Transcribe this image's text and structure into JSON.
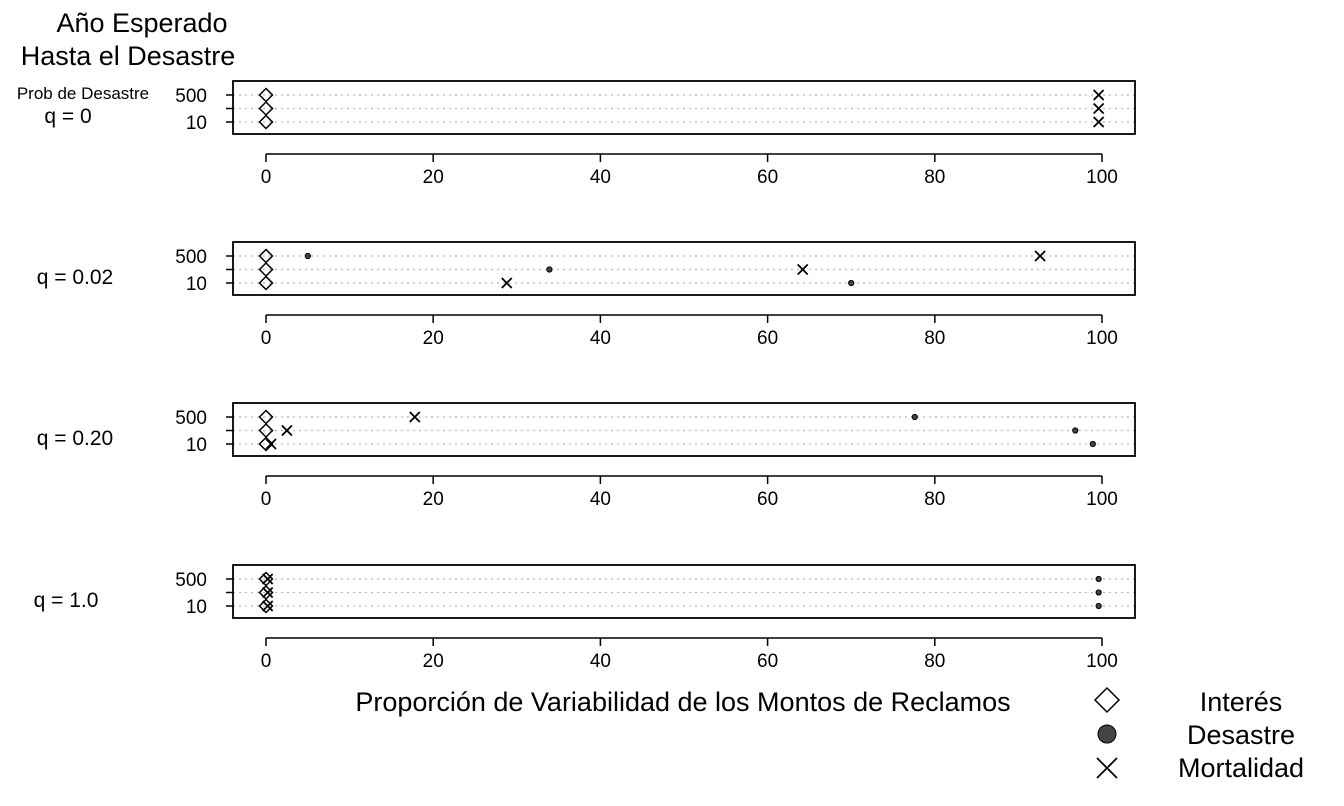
{
  "chart_data": {
    "type": "scatter",
    "heading": {
      "line1": "Año Esperado",
      "line2": "Hasta el Desastre"
    },
    "prob_label": "Prob de Desastre",
    "xlabel": "Proporción de Variabilidad de los Montos de Reclamos",
    "xlim": [
      0,
      100
    ],
    "x_ticks": [
      0,
      20,
      40,
      60,
      80,
      100
    ],
    "y_categories": [
      "10",
      "100",
      "500"
    ],
    "y_tick_labels": [
      "500",
      "10"
    ],
    "grid": "horizontal dotted",
    "legend": {
      "position": "bottom-right",
      "entries": [
        {
          "key": "interes",
          "label": "Interés",
          "symbol": "diamond"
        },
        {
          "key": "desastre",
          "label": "Desastre",
          "symbol": "dot"
        },
        {
          "key": "mortalidad",
          "label": "Mortalidad",
          "symbol": "x"
        }
      ]
    },
    "panels": [
      {
        "label": "q = 0",
        "series": {
          "interes": [
            {
              "x": 0,
              "y": "500"
            },
            {
              "x": 0,
              "y": "100"
            },
            {
              "x": 0,
              "y": "10"
            }
          ],
          "desastre": [],
          "mortalidad": [
            {
              "x": 99.6,
              "y": "500"
            },
            {
              "x": 99.6,
              "y": "100"
            },
            {
              "x": 99.6,
              "y": "10"
            }
          ]
        }
      },
      {
        "label": "q = 0.02",
        "series": {
          "interes": [
            {
              "x": 0,
              "y": "500"
            },
            {
              "x": 0,
              "y": "100"
            },
            {
              "x": 0,
              "y": "10"
            }
          ],
          "desastre": [
            {
              "x": 5,
              "y": "500"
            },
            {
              "x": 33.9,
              "y": "100"
            },
            {
              "x": 70,
              "y": "10"
            }
          ],
          "mortalidad": [
            {
              "x": 92.6,
              "y": "500"
            },
            {
              "x": 64.2,
              "y": "100"
            },
            {
              "x": 28.8,
              "y": "10"
            }
          ]
        }
      },
      {
        "label": "q = 0.20",
        "series": {
          "interes": [
            {
              "x": 0,
              "y": "500"
            },
            {
              "x": 0,
              "y": "100"
            },
            {
              "x": 0,
              "y": "10"
            }
          ],
          "desastre": [
            {
              "x": 77.6,
              "y": "500"
            },
            {
              "x": 96.8,
              "y": "100"
            },
            {
              "x": 98.9,
              "y": "10"
            }
          ],
          "mortalidad": [
            {
              "x": 17.8,
              "y": "500"
            },
            {
              "x": 2.5,
              "y": "100"
            },
            {
              "x": 0.6,
              "y": "10"
            }
          ]
        }
      },
      {
        "label": "q = 1.0",
        "series": {
          "interes": [
            {
              "x": 0,
              "y": "500"
            },
            {
              "x": 0,
              "y": "100"
            },
            {
              "x": 0,
              "y": "10"
            }
          ],
          "desastre": [
            {
              "x": 99.6,
              "y": "500"
            },
            {
              "x": 99.6,
              "y": "100"
            },
            {
              "x": 99.6,
              "y": "10"
            }
          ],
          "mortalidad": [
            {
              "x": 0.2,
              "y": "500"
            },
            {
              "x": 0.2,
              "y": "100"
            },
            {
              "x": 0.2,
              "y": "10"
            }
          ]
        }
      }
    ]
  }
}
